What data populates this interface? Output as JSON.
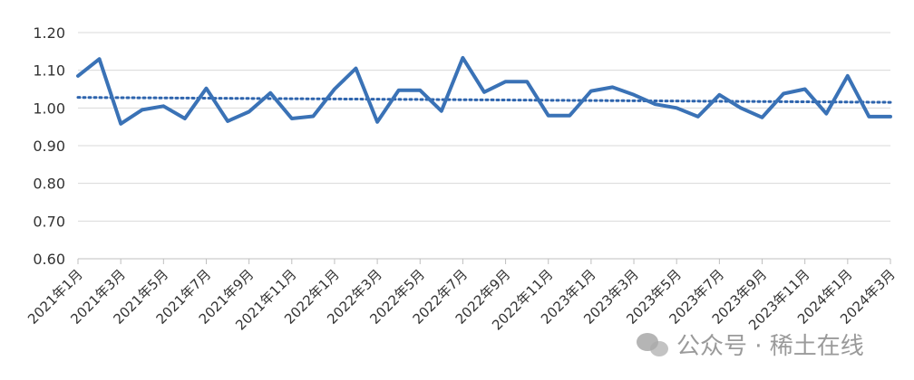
{
  "chart_data": {
    "type": "line",
    "categories": [
      "2021年1月",
      "2021年2月",
      "2021年3月",
      "2021年4月",
      "2021年5月",
      "2021年6月",
      "2021年7月",
      "2021年8月",
      "2021年9月",
      "2021年10月",
      "2021年11月",
      "2021年12月",
      "2022年1月",
      "2022年2月",
      "2022年3月",
      "2022年4月",
      "2022年5月",
      "2022年6月",
      "2022年7月",
      "2022年8月",
      "2022年9月",
      "2022年10月",
      "2022年11月",
      "2022年12月",
      "2023年1月",
      "2023年2月",
      "2023年3月",
      "2023年4月",
      "2023年5月",
      "2023年6月",
      "2023年7月",
      "2023年8月",
      "2023年9月",
      "2023年10月",
      "2023年11月",
      "2023年12月",
      "2024年1月",
      "2024年2月",
      "2024年3月"
    ],
    "tick_labels": [
      "2021年1月",
      "2021年3月",
      "2021年5月",
      "2021年7月",
      "2021年9月",
      "2021年11月",
      "2022年1月",
      "2022年3月",
      "2022年5月",
      "2022年7月",
      "2022年9月",
      "2022年11月",
      "2023年1月",
      "2023年3月",
      "2023年5月",
      "2023年7月",
      "2023年9月",
      "2023年11月",
      "2024年1月",
      "2024年3月"
    ],
    "series": [
      {
        "values": [
          1.085,
          1.13,
          0.958,
          0.995,
          1.005,
          0.972,
          1.052,
          0.965,
          0.99,
          1.04,
          0.972,
          0.978,
          1.05,
          1.105,
          0.963,
          1.047,
          1.047,
          0.992,
          1.133,
          1.042,
          1.07,
          1.07,
          0.98,
          0.98,
          1.045,
          1.055,
          1.035,
          1.01,
          1.0,
          0.977,
          1.035,
          1.0,
          0.975,
          1.038,
          1.05,
          0.985,
          1.085,
          0.977,
          0.977
        ],
        "color": "#3a72b6",
        "style": "solid"
      }
    ],
    "trendline": {
      "start": 1.028,
      "end": 1.015,
      "color": "#2e64ad",
      "style": "dotted"
    },
    "yticks": [
      "0.60",
      "0.70",
      "0.80",
      "0.90",
      "1.00",
      "1.10",
      "1.20"
    ],
    "ylim": [
      0.6,
      1.2
    ],
    "title": "",
    "xlabel": "",
    "ylabel": "",
    "grid": "horizontal",
    "legend": "none"
  },
  "watermark": {
    "text": "公众号 · 稀土在线",
    "icon": "wechat-icon"
  }
}
